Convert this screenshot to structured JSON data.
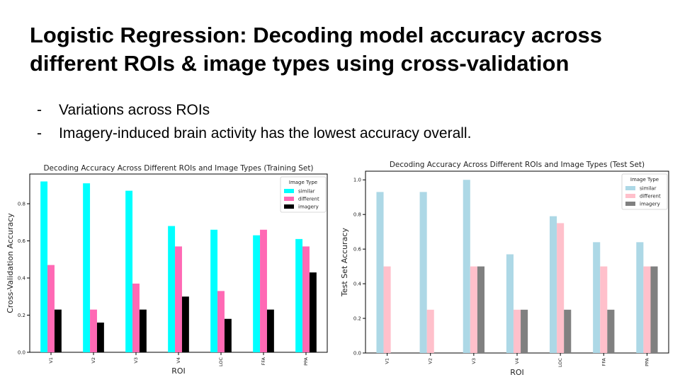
{
  "slide": {
    "title": "Logistic Regression: Decoding model accuracy across different ROIs & image types using cross-validation",
    "bullets": [
      "Variations across ROIs",
      "Imagery-induced brain activity has the lowest accuracy overall."
    ],
    "bullet_marker": "-"
  },
  "chart_data": [
    {
      "type": "bar",
      "title": "Decoding Accuracy Across Different ROIs and Image Types (Training Set)",
      "xlabel": "ROI",
      "ylabel": "Cross-Validation Accuracy",
      "categories": [
        "V1",
        "V2",
        "V3",
        "V4",
        "LOC",
        "FFA",
        "PPA"
      ],
      "ylim": [
        0,
        0.96
      ],
      "yticks": [
        "0.0",
        "0.2",
        "0.4",
        "0.6",
        "0.8"
      ],
      "legend": {
        "title": "Image Type",
        "placement": "top-right"
      },
      "grid": false,
      "series": [
        {
          "name": "similar",
          "color": "#00ffff",
          "values": [
            0.92,
            0.91,
            0.87,
            0.68,
            0.66,
            0.63,
            0.61
          ]
        },
        {
          "name": "different",
          "color": "#ff69b4",
          "values": [
            0.47,
            0.23,
            0.37,
            0.57,
            0.33,
            0.66,
            0.57
          ]
        },
        {
          "name": "imagery",
          "color": "#000000",
          "values": [
            0.23,
            0.16,
            0.23,
            0.3,
            0.18,
            0.23,
            0.43
          ]
        }
      ]
    },
    {
      "type": "bar",
      "title": "Decoding Accuracy Across Different ROIs and Image Types (Test Set)",
      "xlabel": "ROI",
      "ylabel": "Test Set Accuracy",
      "categories": [
        "V1",
        "V2",
        "V3",
        "V4",
        "LOC",
        "FFA",
        "PPA"
      ],
      "ylim": [
        0,
        1.05
      ],
      "yticks": [
        "0.0",
        "0.2",
        "0.4",
        "0.6",
        "0.8",
        "1.0"
      ],
      "legend": {
        "title": "Image Type",
        "placement": "top-right"
      },
      "grid": false,
      "series": [
        {
          "name": "similar",
          "color": "#add8e6",
          "values": [
            0.93,
            0.93,
            1.0,
            0.57,
            0.79,
            0.64,
            0.64
          ]
        },
        {
          "name": "different",
          "color": "#ffc0cb",
          "values": [
            0.5,
            0.25,
            0.5,
            0.25,
            0.75,
            0.5,
            0.5
          ]
        },
        {
          "name": "imagery",
          "color": "#808080",
          "values": [
            0,
            0,
            0.5,
            0.25,
            0.25,
            0.25,
            0.5
          ]
        }
      ]
    }
  ]
}
